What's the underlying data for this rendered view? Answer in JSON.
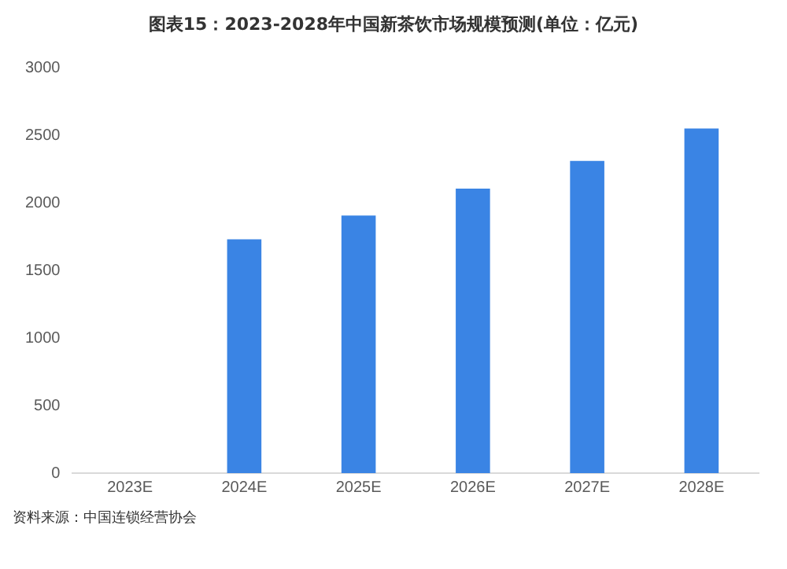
{
  "chart_data": {
    "type": "bar",
    "title": "图表15：2023-2028年中国新茶饮市场规模预测(单位：亿元)",
    "categories": [
      "2023E",
      "2024E",
      "2025E",
      "2026E",
      "2027E",
      "2028E"
    ],
    "values": [
      null,
      1730,
      1905,
      2105,
      2310,
      2550
    ],
    "color": "#3a84e4",
    "ylim": [
      0,
      3000
    ],
    "yticks": [
      0,
      500,
      1000,
      1500,
      2000,
      2500,
      3000
    ],
    "grid": false,
    "annotations": [
      "资料来源：中国连锁经营协会"
    ]
  }
}
